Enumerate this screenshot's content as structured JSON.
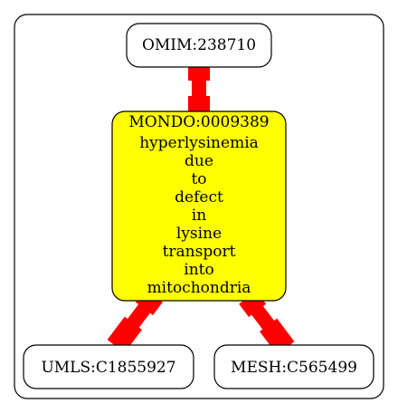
{
  "diagram": {
    "nodes": {
      "omim": {
        "label": "OMIM:238710"
      },
      "mondo": {
        "id": "MONDO:0009389",
        "name_lines": [
          "hyperlysinemia",
          "due",
          "to",
          "defect",
          "in",
          "lysine",
          "transport",
          "into",
          "mitochondria"
        ],
        "fill": "#ffff00"
      },
      "umls": {
        "label": "UMLS:C1855927"
      },
      "mesh": {
        "label": "MESH:C565499"
      }
    },
    "edge_color": "#ff0000",
    "node_fill": "#ffffff"
  }
}
